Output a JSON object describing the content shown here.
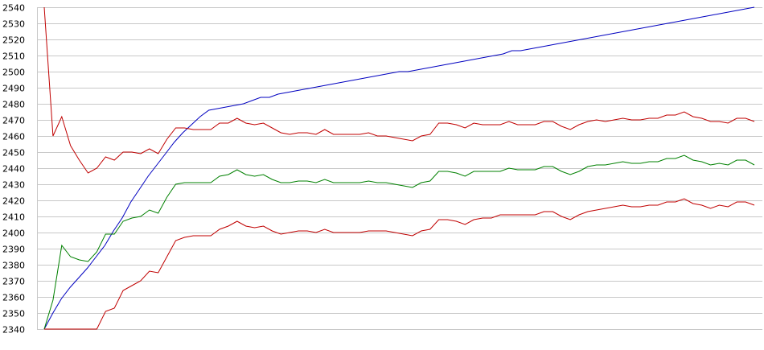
{
  "chart_data": {
    "type": "line",
    "title": "",
    "xlabel": "",
    "ylabel": "",
    "ylim": [
      2340,
      2540
    ],
    "y_ticks": [
      2340,
      2350,
      2360,
      2370,
      2380,
      2390,
      2400,
      2410,
      2420,
      2430,
      2440,
      2450,
      2460,
      2470,
      2480,
      2490,
      2500,
      2510,
      2520,
      2530,
      2540
    ],
    "grid": "horizontal",
    "legend": "none",
    "series": [
      {
        "color": "#0000c0",
        "values": [
          2340,
          2350,
          2359,
          2366,
          2372,
          2378,
          2385,
          2392,
          2401,
          2409,
          2419,
          2427,
          2435,
          2442,
          2449,
          2456,
          2462,
          2467,
          2472,
          2476,
          2477,
          2478,
          2479,
          2480,
          2482,
          2484,
          2484,
          2486,
          2487,
          2488,
          2489,
          2490,
          2491,
          2492,
          2493,
          2494,
          2495,
          2496,
          2497,
          2498,
          2499,
          2500,
          2500,
          2501,
          2502,
          2503,
          2504,
          2505,
          2506,
          2507,
          2508,
          2509,
          2510,
          2511,
          2513,
          2513,
          2514,
          2515,
          2516,
          2517,
          2518,
          2519,
          2520,
          2521,
          2522,
          2523,
          2524,
          2525,
          2526,
          2527,
          2528,
          2529,
          2530,
          2531,
          2532,
          2533,
          2534,
          2535,
          2536,
          2537,
          2538,
          2539,
          2541
        ]
      },
      {
        "color": "#c00000",
        "values": [
          2541,
          2460,
          2472,
          2454,
          2445,
          2437,
          2440,
          2447,
          2445,
          2450,
          2450,
          2449,
          2452,
          2449,
          2458,
          2465,
          2465,
          2464,
          2464,
          2464,
          2468,
          2468,
          2471,
          2468,
          2467,
          2468,
          2465,
          2462,
          2461,
          2462,
          2462,
          2461,
          2464,
          2461,
          2461,
          2461,
          2461,
          2462,
          2460,
          2460,
          2459,
          2458,
          2457,
          2460,
          2461,
          2468,
          2468,
          2467,
          2465,
          2468,
          2467,
          2467,
          2467,
          2469,
          2467,
          2467,
          2467,
          2469,
          2469,
          2466,
          2464,
          2467,
          2469,
          2470,
          2469,
          2470,
          2471,
          2470,
          2470,
          2471,
          2471,
          2473,
          2473,
          2475,
          2472,
          2471,
          2469,
          2469,
          2468,
          2471,
          2471,
          2469
        ]
      },
      {
        "color": "#008000",
        "values": [
          2340,
          2358,
          2392,
          2385,
          2383,
          2382,
          2388,
          2399,
          2399,
          2407,
          2409,
          2410,
          2414,
          2412,
          2422,
          2430,
          2431,
          2431,
          2431,
          2431,
          2435,
          2436,
          2439,
          2436,
          2435,
          2436,
          2433,
          2431,
          2431,
          2432,
          2432,
          2431,
          2433,
          2431,
          2431,
          2431,
          2431,
          2432,
          2431,
          2431,
          2430,
          2429,
          2428,
          2431,
          2432,
          2438,
          2438,
          2437,
          2435,
          2438,
          2438,
          2438,
          2438,
          2440,
          2439,
          2439,
          2439,
          2441,
          2441,
          2438,
          2436,
          2438,
          2441,
          2442,
          2442,
          2443,
          2444,
          2443,
          2443,
          2444,
          2444,
          2446,
          2446,
          2448,
          2445,
          2444,
          2442,
          2443,
          2442,
          2445,
          2445,
          2442
        ]
      },
      {
        "color": "#c00000",
        "values": [
          2340,
          2340,
          2340,
          2340,
          2340,
          2340,
          2340,
          2351,
          2353,
          2364,
          2367,
          2370,
          2376,
          2375,
          2385,
          2395,
          2397,
          2398,
          2398,
          2398,
          2402,
          2404,
          2407,
          2404,
          2403,
          2404,
          2401,
          2399,
          2400,
          2401,
          2401,
          2400,
          2402,
          2400,
          2400,
          2400,
          2400,
          2401,
          2401,
          2401,
          2400,
          2399,
          2398,
          2401,
          2402,
          2408,
          2408,
          2407,
          2405,
          2408,
          2409,
          2409,
          2411,
          2411,
          2411,
          2411,
          2411,
          2413,
          2413,
          2410,
          2408,
          2411,
          2413,
          2414,
          2415,
          2416,
          2417,
          2416,
          2416,
          2417,
          2417,
          2419,
          2419,
          2421,
          2418,
          2417,
          2415,
          2417,
          2416,
          2419,
          2419,
          2417
        ]
      }
    ]
  }
}
